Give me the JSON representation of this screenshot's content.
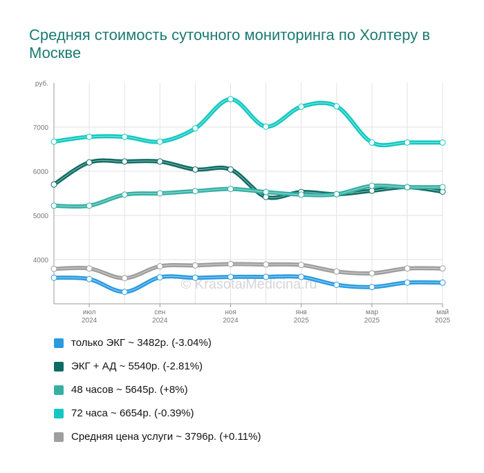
{
  "title": "Средняя стоимость суточного мониторинга по Холтеру в Москве",
  "watermark": "© KrasotaiMedicina.ru",
  "chart_data": {
    "type": "line",
    "y_unit": "руб.",
    "ylim": [
      3000,
      8000
    ],
    "y_ticks": [
      "4000",
      "5000",
      "6000",
      "7000"
    ],
    "x": [
      "2024-06",
      "2024-07",
      "2024-08",
      "2024-09",
      "2024-10",
      "2024-11",
      "2024-12",
      "2025-01",
      "2025-02",
      "2025-03",
      "2025-04",
      "2025-05"
    ],
    "x_tick_labels": [
      {
        "month": "июл",
        "year": "2024"
      },
      {
        "month": "сен",
        "year": "2024"
      },
      {
        "month": "ноя",
        "year": "2024"
      },
      {
        "month": "янв",
        "year": "2025"
      },
      {
        "month": "мар",
        "year": "2025"
      },
      {
        "month": "май",
        "year": "2025"
      }
    ],
    "grid": true,
    "legend_position": "bottom",
    "series": [
      {
        "name": "только ЭКГ ~ 3482р. (-3.04%)",
        "color": "#2b9be0",
        "values": [
          3590,
          3560,
          3270,
          3600,
          3590,
          3610,
          3610,
          3610,
          3430,
          3380,
          3480,
          3480
        ]
      },
      {
        "name": "ЭКГ + АД ~ 5540р. (-2.81%)",
        "color": "#0d6b63",
        "values": [
          5700,
          6200,
          6220,
          6220,
          6040,
          6040,
          5420,
          5530,
          5480,
          5560,
          5640,
          5540
        ]
      },
      {
        "name": "48 часов ~ 5645р. (+8%)",
        "color": "#36b0a4",
        "values": [
          5220,
          5220,
          5470,
          5500,
          5550,
          5600,
          5530,
          5470,
          5480,
          5670,
          5640,
          5640
        ]
      },
      {
        "name": "72 часа ~ 6654р. (-0.39%)",
        "color": "#12c8c2",
        "values": [
          6670,
          6780,
          6780,
          6670,
          6970,
          7630,
          7010,
          7460,
          7470,
          6650,
          6650,
          6650
        ]
      },
      {
        "name": "Средняя цена услуги ~ 3796р. (+0.11%)",
        "color": "#9e9e9e",
        "values": [
          3790,
          3800,
          3580,
          3850,
          3870,
          3900,
          3890,
          3880,
          3730,
          3690,
          3800,
          3800
        ]
      }
    ]
  }
}
